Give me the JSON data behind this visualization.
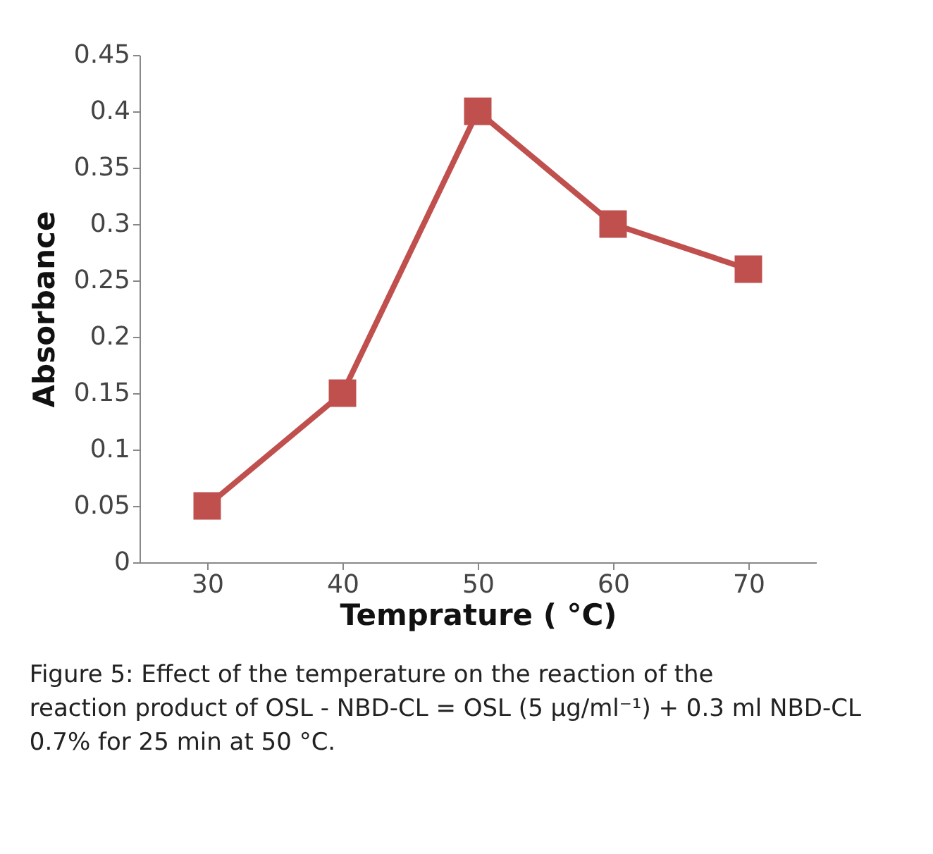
{
  "chart_data": {
    "type": "line",
    "xlabel": "Temprature ( °C)",
    "ylabel": "Absorbance",
    "categories": [
      "30",
      "40",
      "50",
      "60",
      "70"
    ],
    "series": [
      {
        "color": "#c0504d",
        "values": [
          0.05,
          0.15,
          0.4,
          0.3,
          0.26
        ]
      }
    ],
    "ylim": [
      0,
      0.45
    ],
    "yticks": [
      0,
      0.05,
      0.1,
      0.15,
      0.2,
      0.25,
      0.3,
      0.35,
      0.4,
      0.45
    ],
    "marker": "square",
    "line_style": "solid",
    "grid": false,
    "legend": false,
    "annotations": [
      "Figure 5: Effect of the temperature on the reaction of the reaction product of OSL - NBD-CL = OSL (5 µg/ml⁻¹) + 0.3 ml NBD-CL 0.7% for 25 min at 50 °C."
    ]
  }
}
